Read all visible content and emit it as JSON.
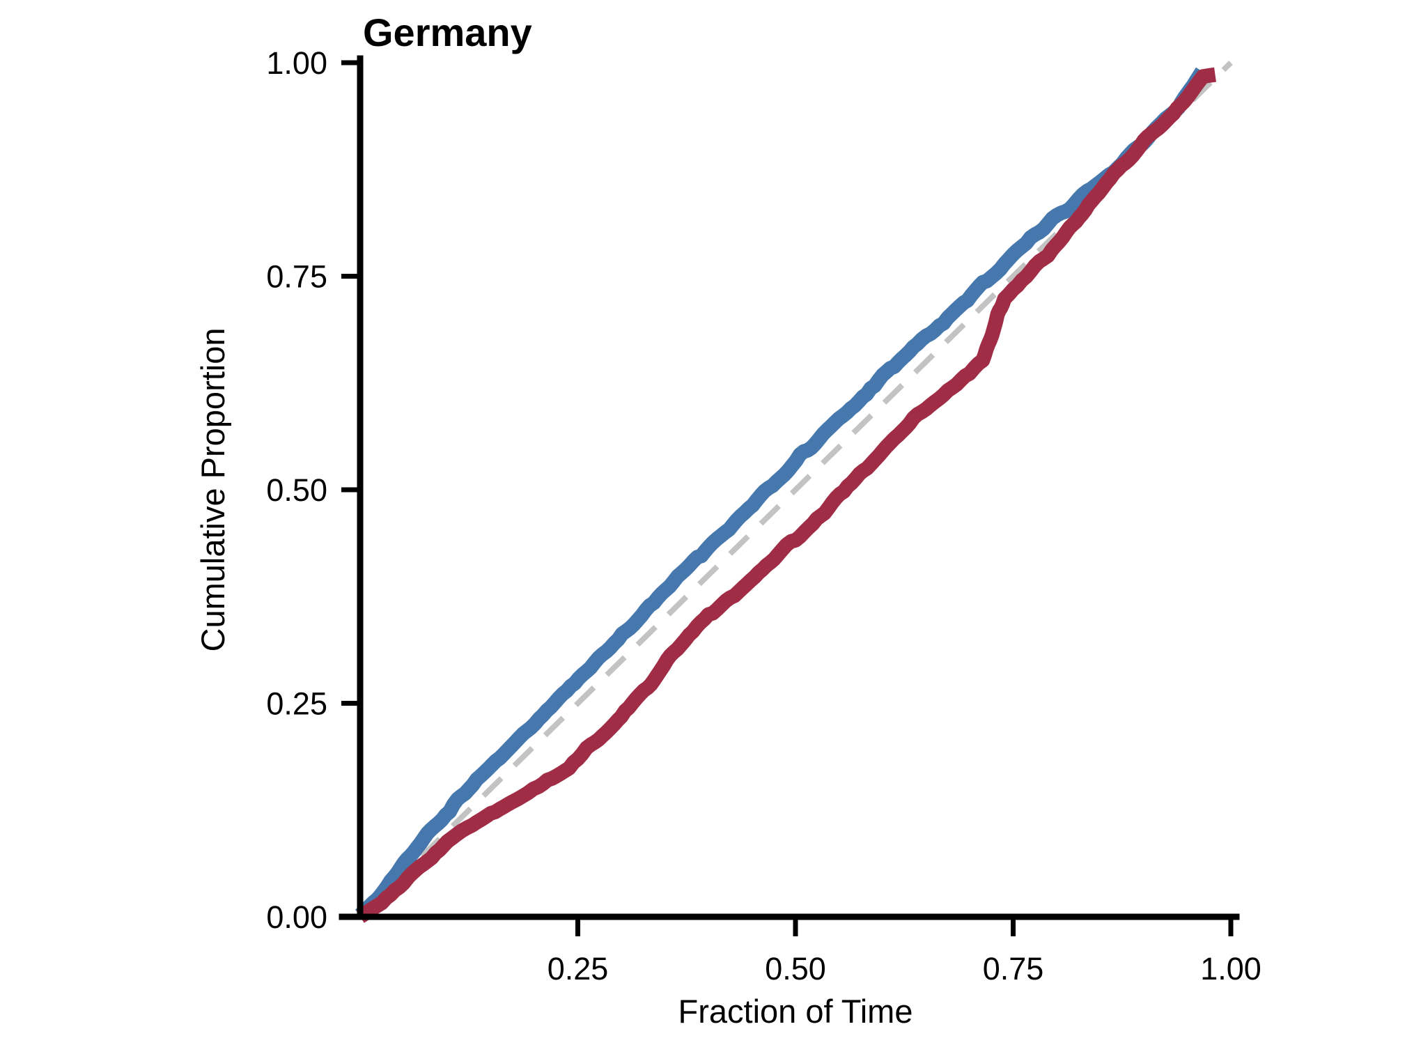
{
  "title": "Germany",
  "colors": {
    "blue_series": "#4678ad",
    "red_series": "#a02d45",
    "reference_dash": "#c3c3c3",
    "axis": "#000000",
    "background": "#ffffff"
  },
  "axes": {
    "x": {
      "label": "Fraction of Time",
      "tick_labels": [
        "0.25",
        "0.50",
        "0.75",
        "1.00"
      ],
      "tick_values": [
        0.25,
        0.5,
        0.75,
        1.0
      ],
      "range": [
        0,
        1
      ]
    },
    "y": {
      "label": "Cumulative Proportion",
      "tick_labels": [
        "0.00",
        "0.25",
        "0.50",
        "0.75",
        "1.00"
      ],
      "tick_values": [
        0,
        0.25,
        0.5,
        0.75,
        1.0
      ],
      "range": [
        0,
        1
      ]
    }
  },
  "chart_data": {
    "type": "line",
    "title": "Germany",
    "xlabel": "Fraction of Time",
    "ylabel": "Cumulative Proportion",
    "xlim": [
      0,
      1
    ],
    "ylim": [
      0,
      1
    ],
    "grid": false,
    "legend": false,
    "series": [
      {
        "name": "series-blue",
        "color": "#4678ad",
        "style": "solid",
        "x": [
          0.0,
          0.02,
          0.05,
          0.085,
          0.125,
          0.165,
          0.21,
          0.26,
          0.31,
          0.36,
          0.41,
          0.46,
          0.505,
          0.55,
          0.6,
          0.64,
          0.68,
          0.715,
          0.75,
          0.785,
          0.82,
          0.85,
          0.88,
          0.91,
          0.94,
          0.967
        ],
        "y": [
          0.002,
          0.02,
          0.06,
          0.105,
          0.15,
          0.19,
          0.237,
          0.288,
          0.338,
          0.39,
          0.441,
          0.492,
          0.538,
          0.583,
          0.632,
          0.67,
          0.707,
          0.741,
          0.774,
          0.807,
          0.836,
          0.859,
          0.888,
          0.918,
          0.947,
          0.99
        ]
      },
      {
        "name": "series-red",
        "color": "#a02d45",
        "style": "solid",
        "x": [
          0.0,
          0.025,
          0.06,
          0.1,
          0.14,
          0.175,
          0.205,
          0.235,
          0.265,
          0.3,
          0.33,
          0.36,
          0.4,
          0.44,
          0.48,
          0.52,
          0.56,
          0.6,
          0.64,
          0.675,
          0.7,
          0.715,
          0.728,
          0.74,
          0.76,
          0.79,
          0.815,
          0.84,
          0.87,
          0.9,
          0.93,
          0.955,
          0.968,
          0.982
        ],
        "y": [
          0.0,
          0.018,
          0.05,
          0.088,
          0.113,
          0.138,
          0.152,
          0.172,
          0.2,
          0.236,
          0.268,
          0.31,
          0.352,
          0.385,
          0.424,
          0.46,
          0.502,
          0.546,
          0.586,
          0.618,
          0.637,
          0.652,
          0.69,
          0.727,
          0.747,
          0.773,
          0.806,
          0.84,
          0.876,
          0.908,
          0.938,
          0.966,
          0.984,
          0.986
        ]
      },
      {
        "name": "reference-diagonal",
        "color": "#c3c3c3",
        "style": "dashed",
        "x": [
          0,
          1
        ],
        "y": [
          0,
          1
        ]
      }
    ]
  }
}
